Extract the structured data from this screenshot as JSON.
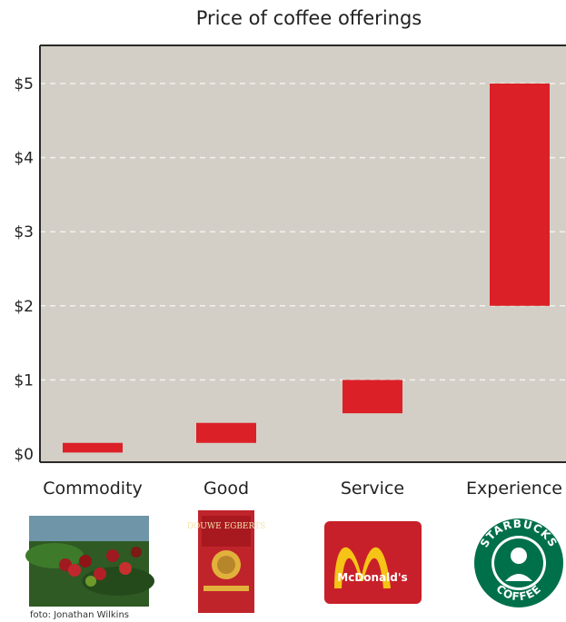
{
  "chart_data": {
    "type": "bar",
    "title": "Price of coffee offerings",
    "categories": [
      "Commodity",
      "Good",
      "Service",
      "Experience"
    ],
    "ranges": [
      {
        "category": "Commodity",
        "low": 0.02,
        "high": 0.15
      },
      {
        "category": "Good",
        "low": 0.15,
        "high": 0.42
      },
      {
        "category": "Service",
        "low": 0.55,
        "high": 1.0
      },
      {
        "category": "Experience",
        "low": 2.0,
        "high": 5.0
      }
    ],
    "ylim": [
      0,
      5.5
    ],
    "yticks": [
      0,
      1,
      2,
      3,
      4,
      5
    ],
    "ytick_labels": [
      "$0",
      "$1",
      "$2",
      "$3",
      "$4",
      "$5"
    ],
    "grid": "horizontal dashed",
    "colors": {
      "bar": "#dc2027",
      "plot_bg": "#d3cfc6",
      "axes": "#2a2a2a",
      "grid": "#f4f2ee"
    }
  },
  "images": {
    "commodity_credit": "foto: Jonathan Wilkins",
    "good_brand": "DOUWE EGBERTS",
    "service_brand": "McDonald's",
    "experience_brand_top": "STARBUCKS",
    "experience_brand_bottom": "COFFEE"
  }
}
